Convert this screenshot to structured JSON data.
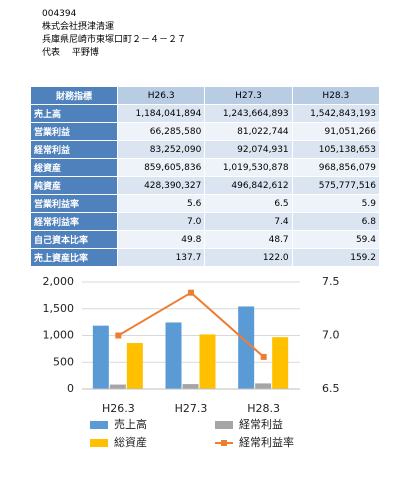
{
  "header": {
    "code": "004394",
    "company": "株式会社摂津清運",
    "address": "兵庫県尼崎市東塚口町２－４－２７",
    "representative": "代表　 平野博"
  },
  "table": {
    "columns": [
      "財務指標",
      "H26.3",
      "H27.3",
      "H28.3"
    ],
    "rows": [
      [
        "売上高",
        "1,184,041,894",
        "1,243,664,893",
        "1,542,843,193"
      ],
      [
        "営業利益",
        "66,285,580",
        "81,022,744",
        "91,051,266"
      ],
      [
        "経常利益",
        "83,252,090",
        "92,074,931",
        "105,138,653"
      ],
      [
        "総資産",
        "859,605,836",
        "1,019,530,878",
        "968,856,079"
      ],
      [
        "純資産",
        "428,390,327",
        "496,842,612",
        "575,777,516"
      ],
      [
        "営業利益率",
        "5.6",
        "6.5",
        "5.9"
      ],
      [
        "経常利益率",
        "7.0",
        "7.4",
        "6.8"
      ],
      [
        "自己資本比率",
        "49.8",
        "48.7",
        "59.4"
      ],
      [
        "売上資産比率",
        "137.7",
        "122.0",
        "159.2"
      ]
    ]
  },
  "chart_data": {
    "type": "bar",
    "categories": [
      "H26.3",
      "H27.3",
      "H28.3"
    ],
    "series": [
      {
        "name": "売上高",
        "color": "#5b9bd5",
        "values": [
          1184,
          1244,
          1543
        ]
      },
      {
        "name": "経常利益",
        "color": "#a5a5a5",
        "values": [
          83,
          92,
          105
        ]
      },
      {
        "name": "総資産",
        "color": "#ffc000",
        "values": [
          860,
          1020,
          969
        ]
      },
      {
        "name": "経常利益率",
        "color": "#ed7d31",
        "type": "line",
        "axis": "y2",
        "values": [
          7.0,
          7.4,
          6.8
        ]
      }
    ],
    "ylim": [
      0,
      2000
    ],
    "yticks": [
      0,
      500,
      {
        "value": 1000,
        "label": "1,000"
      },
      {
        "value": 1500,
        "label": "1,500"
      },
      {
        "value": 2000,
        "label": "2,000"
      }
    ],
    "y2lim": [
      6.5,
      7.5
    ],
    "y2ticks": [
      {
        "value": 6.5,
        "label": "6.5"
      },
      {
        "value": 7.0,
        "label": "7.0"
      },
      {
        "value": 7.5,
        "label": "7.5"
      }
    ],
    "grid": true
  }
}
